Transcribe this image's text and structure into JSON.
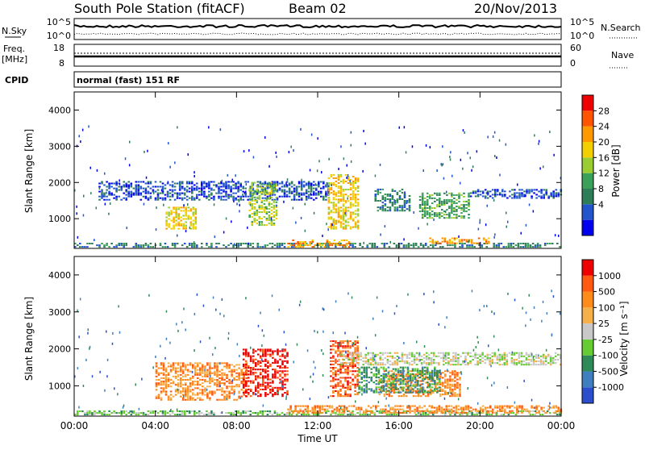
{
  "header": {
    "station": "South Pole Station (fitACF)",
    "beam": "Beam 02",
    "date": "20/Nov/2013"
  },
  "status_panels": {
    "nsky_label": "N.Sky",
    "nsky_ticks": [
      "10^5",
      "10^0"
    ],
    "nsearch_label": "N.Search",
    "nsearch_ticks": [
      "10^5",
      "10^0"
    ],
    "freq_label": "Freq.",
    "freq_unit": "[MHz]",
    "freq_ticks": [
      "18",
      "8"
    ],
    "nave_label": "Nave",
    "nave_ticks": [
      "60",
      "0"
    ],
    "cpid_label": "CPID",
    "cpid_value": "normal (fast) 151 RF"
  },
  "chart_data": [
    {
      "type": "heatmap",
      "name": "power",
      "ylabel": "Slant Range [km]",
      "yticks": [
        "4000",
        "3000",
        "2000",
        "1000"
      ],
      "xticks": [
        "00:00",
        "04:00",
        "08:00",
        "12:00",
        "16:00",
        "20:00",
        "00:00"
      ],
      "xlabel": "",
      "xlim": [
        0,
        24
      ],
      "ylim": [
        180,
        4500
      ],
      "colorbar": {
        "label": "Power [dB]",
        "ticks": [
          "28",
          "24",
          "20",
          "16",
          "12",
          "8",
          "4"
        ],
        "colors": [
          "#0000ee",
          "#2255cc",
          "#2e7d59",
          "#3aa05a",
          "#9acd32",
          "#f2d000",
          "#ff9900",
          "#ff5500",
          "#ee0000"
        ]
      },
      "features": [
        {
          "t0": 0.0,
          "t1": 24.0,
          "r0": 200,
          "r1": 320,
          "level": 2
        },
        {
          "t0": 1.2,
          "t1": 12.5,
          "r0": 1500,
          "r1": 2000,
          "level": 1
        },
        {
          "t0": 4.5,
          "t1": 6.0,
          "r0": 700,
          "r1": 1300,
          "level": 5
        },
        {
          "t0": 8.6,
          "t1": 10.0,
          "r0": 800,
          "r1": 2000,
          "level": 4
        },
        {
          "t0": 12.5,
          "t1": 14.0,
          "r0": 700,
          "r1": 2200,
          "level": 5
        },
        {
          "t0": 14.8,
          "t1": 16.5,
          "r0": 1200,
          "r1": 1800,
          "level": 2
        },
        {
          "t0": 17.0,
          "t1": 19.5,
          "r0": 1000,
          "r1": 1700,
          "level": 3
        },
        {
          "t0": 19.5,
          "t1": 24.0,
          "r0": 1550,
          "r1": 1800,
          "level": 1
        },
        {
          "t0": 10.5,
          "t1": 13.5,
          "r0": 200,
          "r1": 420,
          "level": 6
        },
        {
          "t0": 17.5,
          "t1": 20.5,
          "r0": 300,
          "r1": 450,
          "level": 6
        }
      ]
    },
    {
      "type": "heatmap",
      "name": "velocity",
      "ylabel": "Slant Range [km]",
      "yticks": [
        "4000",
        "3000",
        "2000",
        "1000"
      ],
      "xticks": [
        "00:00",
        "04:00",
        "08:00",
        "12:00",
        "16:00",
        "20:00",
        "00:00"
      ],
      "xlabel": "Time UT",
      "xlim": [
        0,
        24
      ],
      "ylim": [
        180,
        4500
      ],
      "colorbar": {
        "label": "Velocity [m s⁻¹]",
        "ticks": [
          "1000",
          "500",
          "100",
          "25",
          "-25",
          "-100",
          "-500",
          "-1000"
        ],
        "colors": [
          "#2b4fcc",
          "#3f7fbf",
          "#2e8b57",
          "#66cc33",
          "#c8c8c8",
          "#f6b04a",
          "#ff8c1a",
          "#ff5a10",
          "#ee0000"
        ]
      },
      "features": [
        {
          "t0": 0.0,
          "t1": 24.0,
          "r0": 200,
          "r1": 320,
          "level": 3
        },
        {
          "t0": 4.0,
          "t1": 8.5,
          "r0": 600,
          "r1": 1600,
          "level": 6
        },
        {
          "t0": 8.3,
          "t1": 10.5,
          "r0": 700,
          "r1": 2000,
          "level": 8
        },
        {
          "t0": 12.6,
          "t1": 14.0,
          "r0": 700,
          "r1": 2200,
          "level": 7
        },
        {
          "t0": 13.0,
          "t1": 24.0,
          "r0": 1550,
          "r1": 1900,
          "level": 4
        },
        {
          "t0": 15.0,
          "t1": 19.0,
          "r0": 700,
          "r1": 1400,
          "level": 6
        },
        {
          "t0": 14.0,
          "t1": 18.0,
          "r0": 800,
          "r1": 1500,
          "level": 2
        },
        {
          "t0": 10.5,
          "t1": 24.0,
          "r0": 250,
          "r1": 450,
          "level": 6
        }
      ]
    }
  ]
}
